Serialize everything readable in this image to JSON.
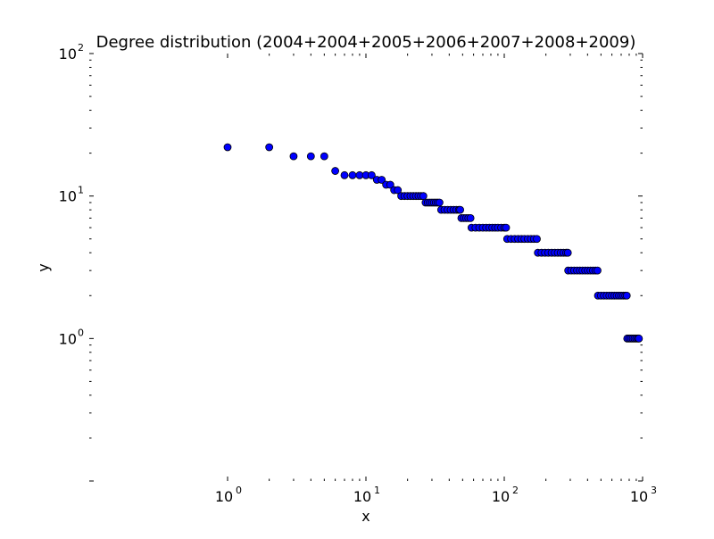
{
  "chart_data": {
    "type": "scatter",
    "title": "Degree distribution (2004+2004+2005+2006+2007+2008+2009)",
    "xlabel": "x",
    "ylabel": "y",
    "xscale": "log",
    "yscale": "log",
    "xlim": [
      1,
      1000
    ],
    "ylim": [
      0.1,
      100
    ],
    "grid": false,
    "legend": "none",
    "marker_color": "#0000ff",
    "marker_edge_color": "#000000",
    "x_ticks": [
      {
        "base": "10",
        "exp": "0",
        "value": 1
      },
      {
        "base": "10",
        "exp": "1",
        "value": 10
      },
      {
        "base": "10",
        "exp": "2",
        "value": 100
      },
      {
        "base": "10",
        "exp": "3",
        "value": 1000
      }
    ],
    "y_ticks": [
      {
        "base": "10",
        "exp": "0",
        "value": 1
      },
      {
        "base": "10",
        "exp": "1",
        "value": 10
      },
      {
        "base": "10",
        "exp": "2",
        "value": 100
      }
    ],
    "points": [
      {
        "x": 1,
        "y": 22
      },
      {
        "x": 2,
        "y": 22
      },
      {
        "x": 3,
        "y": 19
      },
      {
        "x": 4,
        "y": 19
      },
      {
        "x": 5,
        "y": 19
      },
      {
        "x": 6,
        "y": 15
      },
      {
        "x": 7,
        "y": 14
      },
      {
        "x": 8,
        "y": 14
      },
      {
        "x": 9,
        "y": 14
      },
      {
        "x": 10,
        "y": 14
      },
      {
        "x": 11,
        "y": 14
      },
      {
        "x": 12,
        "y": 13
      },
      {
        "x": 13,
        "y": 13
      },
      {
        "x": 14,
        "y": 12
      },
      {
        "x": 15,
        "y": 12
      },
      {
        "x": 16,
        "y": 11
      },
      {
        "x": 17,
        "y": 11
      },
      {
        "x": 18,
        "y": 10
      },
      {
        "x": 19,
        "y": 10
      },
      {
        "x": 20,
        "y": 10
      },
      {
        "x": 21,
        "y": 10
      },
      {
        "x": 22,
        "y": 10
      },
      {
        "x": 23,
        "y": 10
      },
      {
        "x": 24,
        "y": 10
      },
      {
        "x": 25,
        "y": 10
      },
      {
        "x": 26,
        "y": 10
      },
      {
        "x": 27,
        "y": 9
      },
      {
        "x": 28,
        "y": 9
      },
      {
        "x": 29,
        "y": 9
      },
      {
        "x": 30,
        "y": 9
      },
      {
        "x": 31,
        "y": 9
      },
      {
        "x": 32,
        "y": 9
      },
      {
        "x": 33,
        "y": 9
      },
      {
        "x": 34,
        "y": 9
      },
      {
        "x": 35,
        "y": 8
      },
      {
        "x": 37,
        "y": 8
      },
      {
        "x": 39,
        "y": 8
      },
      {
        "x": 41,
        "y": 8
      },
      {
        "x": 43,
        "y": 8
      },
      {
        "x": 45,
        "y": 8
      },
      {
        "x": 47,
        "y": 8
      },
      {
        "x": 48,
        "y": 8
      },
      {
        "x": 49,
        "y": 7
      },
      {
        "x": 51,
        "y": 7
      },
      {
        "x": 53,
        "y": 7
      },
      {
        "x": 55,
        "y": 7
      },
      {
        "x": 57,
        "y": 7
      },
      {
        "x": 58,
        "y": 6
      },
      {
        "x": 62,
        "y": 6
      },
      {
        "x": 66,
        "y": 6
      },
      {
        "x": 70,
        "y": 6
      },
      {
        "x": 74,
        "y": 6
      },
      {
        "x": 78,
        "y": 6
      },
      {
        "x": 82,
        "y": 6
      },
      {
        "x": 86,
        "y": 6
      },
      {
        "x": 90,
        "y": 6
      },
      {
        "x": 95,
        "y": 6
      },
      {
        "x": 100,
        "y": 6
      },
      {
        "x": 103,
        "y": 6
      },
      {
        "x": 105,
        "y": 5
      },
      {
        "x": 112,
        "y": 5
      },
      {
        "x": 119,
        "y": 5
      },
      {
        "x": 126,
        "y": 5
      },
      {
        "x": 133,
        "y": 5
      },
      {
        "x": 140,
        "y": 5
      },
      {
        "x": 148,
        "y": 5
      },
      {
        "x": 156,
        "y": 5
      },
      {
        "x": 164,
        "y": 5
      },
      {
        "x": 172,
        "y": 5
      },
      {
        "x": 175,
        "y": 4
      },
      {
        "x": 186,
        "y": 4
      },
      {
        "x": 197,
        "y": 4
      },
      {
        "x": 208,
        "y": 4
      },
      {
        "x": 220,
        "y": 4
      },
      {
        "x": 232,
        "y": 4
      },
      {
        "x": 244,
        "y": 4
      },
      {
        "x": 256,
        "y": 4
      },
      {
        "x": 268,
        "y": 4
      },
      {
        "x": 280,
        "y": 4
      },
      {
        "x": 288,
        "y": 4
      },
      {
        "x": 290,
        "y": 3
      },
      {
        "x": 305,
        "y": 3
      },
      {
        "x": 320,
        "y": 3
      },
      {
        "x": 336,
        "y": 3
      },
      {
        "x": 352,
        "y": 3
      },
      {
        "x": 368,
        "y": 3
      },
      {
        "x": 385,
        "y": 3
      },
      {
        "x": 402,
        "y": 3
      },
      {
        "x": 420,
        "y": 3
      },
      {
        "x": 438,
        "y": 3
      },
      {
        "x": 456,
        "y": 3
      },
      {
        "x": 472,
        "y": 3
      },
      {
        "x": 476,
        "y": 2
      },
      {
        "x": 500,
        "y": 2
      },
      {
        "x": 525,
        "y": 2
      },
      {
        "x": 550,
        "y": 2
      },
      {
        "x": 575,
        "y": 2
      },
      {
        "x": 600,
        "y": 2
      },
      {
        "x": 625,
        "y": 2
      },
      {
        "x": 650,
        "y": 2
      },
      {
        "x": 675,
        "y": 2
      },
      {
        "x": 700,
        "y": 2
      },
      {
        "x": 725,
        "y": 2
      },
      {
        "x": 750,
        "y": 2
      },
      {
        "x": 768,
        "y": 2
      },
      {
        "x": 775,
        "y": 1
      },
      {
        "x": 800,
        "y": 1
      },
      {
        "x": 825,
        "y": 1
      },
      {
        "x": 850,
        "y": 1
      },
      {
        "x": 875,
        "y": 1
      },
      {
        "x": 900,
        "y": 1
      },
      {
        "x": 925,
        "y": 1
      },
      {
        "x": 940,
        "y": 1
      }
    ]
  }
}
